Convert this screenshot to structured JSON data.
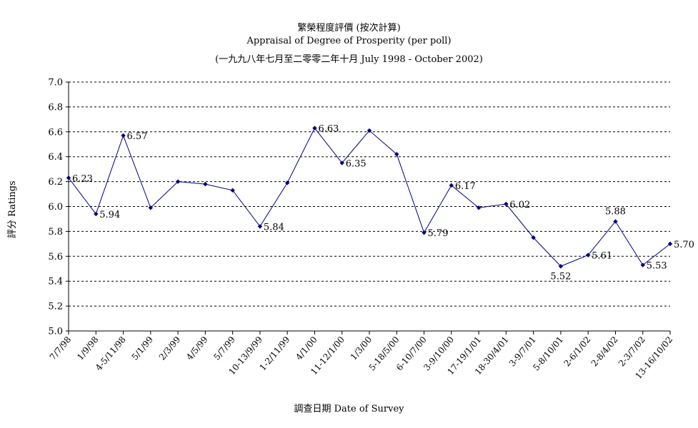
{
  "chart_data": {
    "type": "line",
    "title": "繁榮程度評價 (按次計算)",
    "subtitle": "Appraisal of Degree of Prosperity (per poll)",
    "subtitle2": "(一九九八年七月至二零零二年十月 July 1998 - October 2002)",
    "xlabel": "調查日期 Date of Survey",
    "ylabel": "評分 Ratings",
    "ylim": [
      5.0,
      7.0
    ],
    "yticks": [
      "5.0",
      "5.2",
      "5.4",
      "5.6",
      "5.8",
      "6.0",
      "6.2",
      "6.4",
      "6.6",
      "6.8",
      "7.0"
    ],
    "grid": true,
    "line_color": "#000080",
    "categories": [
      "7/7/98",
      "1/9/98",
      "4-5/11/98",
      "5/1/99",
      "2/3/99",
      "4/5/99",
      "5/7/99",
      "10-13/9/99",
      "1-2/11/99",
      "4/1/00",
      "11-12/1/00",
      "1/3/00",
      "5-18/5/00",
      "6-10/7/00",
      "3-9/10/00",
      "17-19/1/01",
      "18-30/4/01",
      "3-9/7/01",
      "5-8/10/01",
      "2-6/1/02",
      "2-8/4/02",
      "2-3/7/02",
      "13-16/10/02"
    ],
    "series": [
      {
        "values": [
          6.23,
          5.94,
          6.57,
          5.99,
          6.2,
          6.18,
          6.13,
          5.84,
          6.19,
          6.63,
          6.35,
          6.61,
          6.42,
          5.79,
          6.17,
          5.99,
          6.02,
          5.75,
          5.52,
          5.61,
          5.88,
          5.53,
          5.7
        ]
      }
    ],
    "data_labels": [
      {
        "index": 0,
        "text": "6.23",
        "pos": "right"
      },
      {
        "index": 1,
        "text": "5.94",
        "pos": "right"
      },
      {
        "index": 2,
        "text": "6.57",
        "pos": "right"
      },
      {
        "index": 7,
        "text": "5.84",
        "pos": "right"
      },
      {
        "index": 9,
        "text": "6.63",
        "pos": "right"
      },
      {
        "index": 10,
        "text": "6.35",
        "pos": "right"
      },
      {
        "index": 13,
        "text": "5.79",
        "pos": "right"
      },
      {
        "index": 14,
        "text": "6.17",
        "pos": "right"
      },
      {
        "index": 16,
        "text": "6.02",
        "pos": "right"
      },
      {
        "index": 18,
        "text": "5.52",
        "pos": "below"
      },
      {
        "index": 19,
        "text": "5.61",
        "pos": "right"
      },
      {
        "index": 20,
        "text": "5.88",
        "pos": "above"
      },
      {
        "index": 21,
        "text": "5.53",
        "pos": "right"
      },
      {
        "index": 22,
        "text": "5.70",
        "pos": "right"
      }
    ]
  }
}
